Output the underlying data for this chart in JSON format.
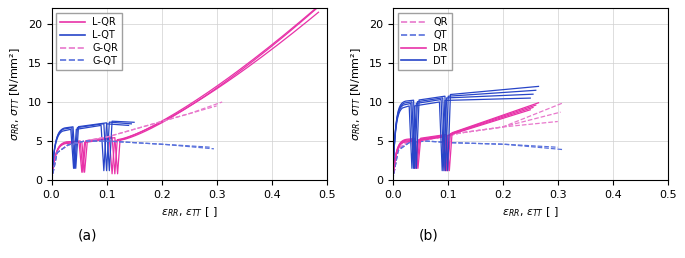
{
  "fig_width": 6.85,
  "fig_height": 2.58,
  "dpi": 100,
  "mag": "#E832A8",
  "blu": "#2845C8",
  "mag_d": "#E878CC",
  "blu_d": "#5870DC",
  "ylim": [
    0,
    22
  ],
  "xlim": [
    0,
    0.5
  ],
  "yticks": [
    0,
    5,
    10,
    15,
    20
  ],
  "xticks": [
    0,
    0.1,
    0.2,
    0.3,
    0.4,
    0.5
  ],
  "label_a": "(a)",
  "label_b": "(b)"
}
